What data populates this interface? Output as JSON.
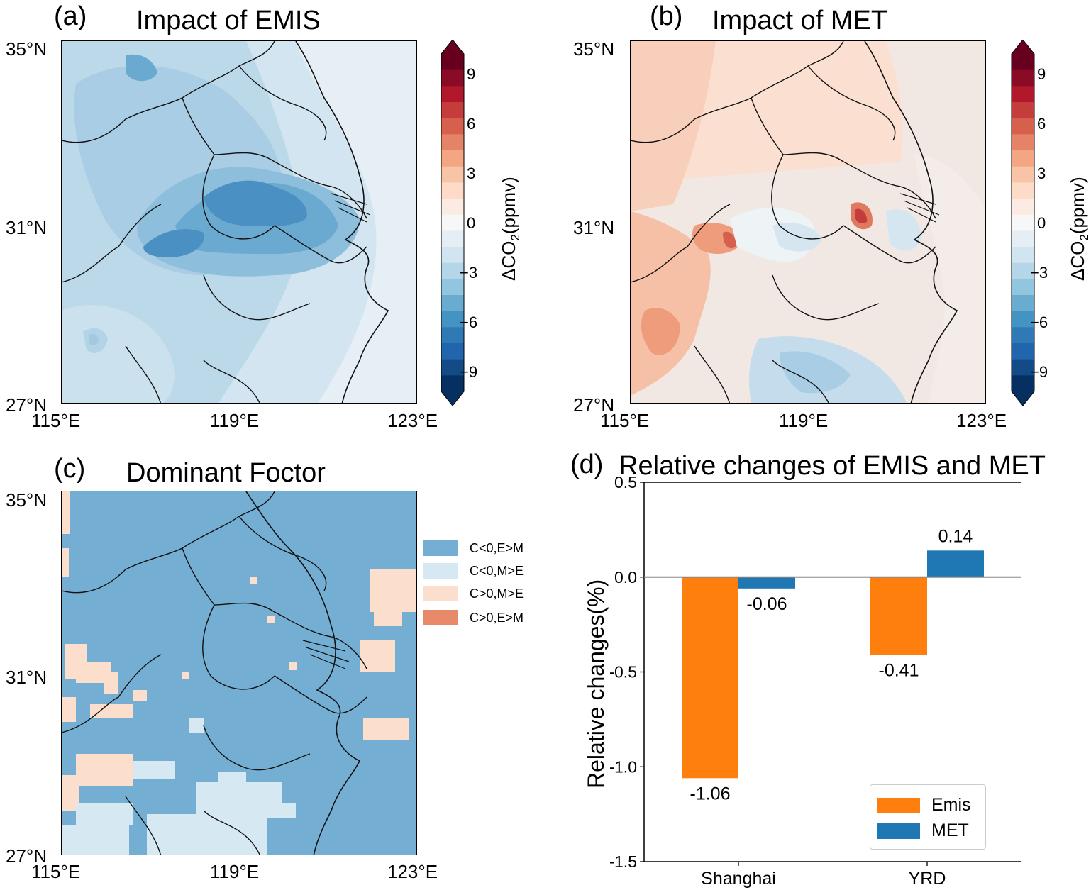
{
  "panels": {
    "a": {
      "label": "(a)",
      "title": "Impact of EMIS"
    },
    "b": {
      "label": "(b)",
      "title": "Impact of MET"
    },
    "c": {
      "label": "(c)",
      "title": "Dominant Foctor"
    },
    "d": {
      "label": "(d)",
      "title": "Relative changes of EMIS and MET"
    }
  },
  "map_axes": {
    "lat_ticks": [
      "35°N",
      "31°N",
      "27°N"
    ],
    "lon_ticks": [
      "115°E",
      "119°E",
      "123°E"
    ]
  },
  "colorbar": {
    "label_prefix": "ΔCO",
    "label_sub": "2",
    "label_suffix": "(ppmv)",
    "ticks": [
      "9",
      "6",
      "3",
      "0",
      "−3",
      "−6",
      "−9"
    ],
    "colors": [
      "#67001f",
      "#8a0b25",
      "#b2182b",
      "#c43c3c",
      "#d6604d",
      "#e58368",
      "#f4a582",
      "#f8c4a8",
      "#fddbc7",
      "#fbebe2",
      "#f7f7f7",
      "#e5eef4",
      "#d1e5f0",
      "#b4d6e8",
      "#92c5de",
      "#6aacd0",
      "#4393c3",
      "#2f79b5",
      "#2166ac",
      "#134b87",
      "#053061"
    ]
  },
  "dominant_legend": [
    {
      "label": "C<0,E>M",
      "color": "#74afd3"
    },
    {
      "label": "C<0,M>E",
      "color": "#d6e8f2"
    },
    {
      "label": "C>0,M>E",
      "color": "#fbdecb"
    },
    {
      "label": "C>0,E>M",
      "color": "#e8896a"
    }
  ],
  "chart_data": {
    "type": "bar",
    "title": "Relative changes of EMIS and MET",
    "categories": [
      "Shanghai",
      "YRD"
    ],
    "series": [
      {
        "name": "Emis",
        "values": [
          -1.06,
          -0.41
        ],
        "labels": [
          "-1.06",
          "-0.41"
        ],
        "color": "#ff7f0e"
      },
      {
        "name": "MET",
        "values": [
          -0.06,
          0.14
        ],
        "labels": [
          "-0.06",
          "0.14"
        ],
        "color": "#1f77b4"
      }
    ],
    "ylabel": "Relative changes(%)",
    "xlabel": "",
    "ylim": [
      -1.5,
      0.5
    ],
    "yticks": [
      "0.5",
      "0.0",
      "-0.5",
      "-1.0",
      "-1.5"
    ],
    "ytick_values": [
      0.5,
      0.0,
      -0.5,
      -1.0,
      -1.5
    ],
    "legend_position": "lower-right"
  }
}
